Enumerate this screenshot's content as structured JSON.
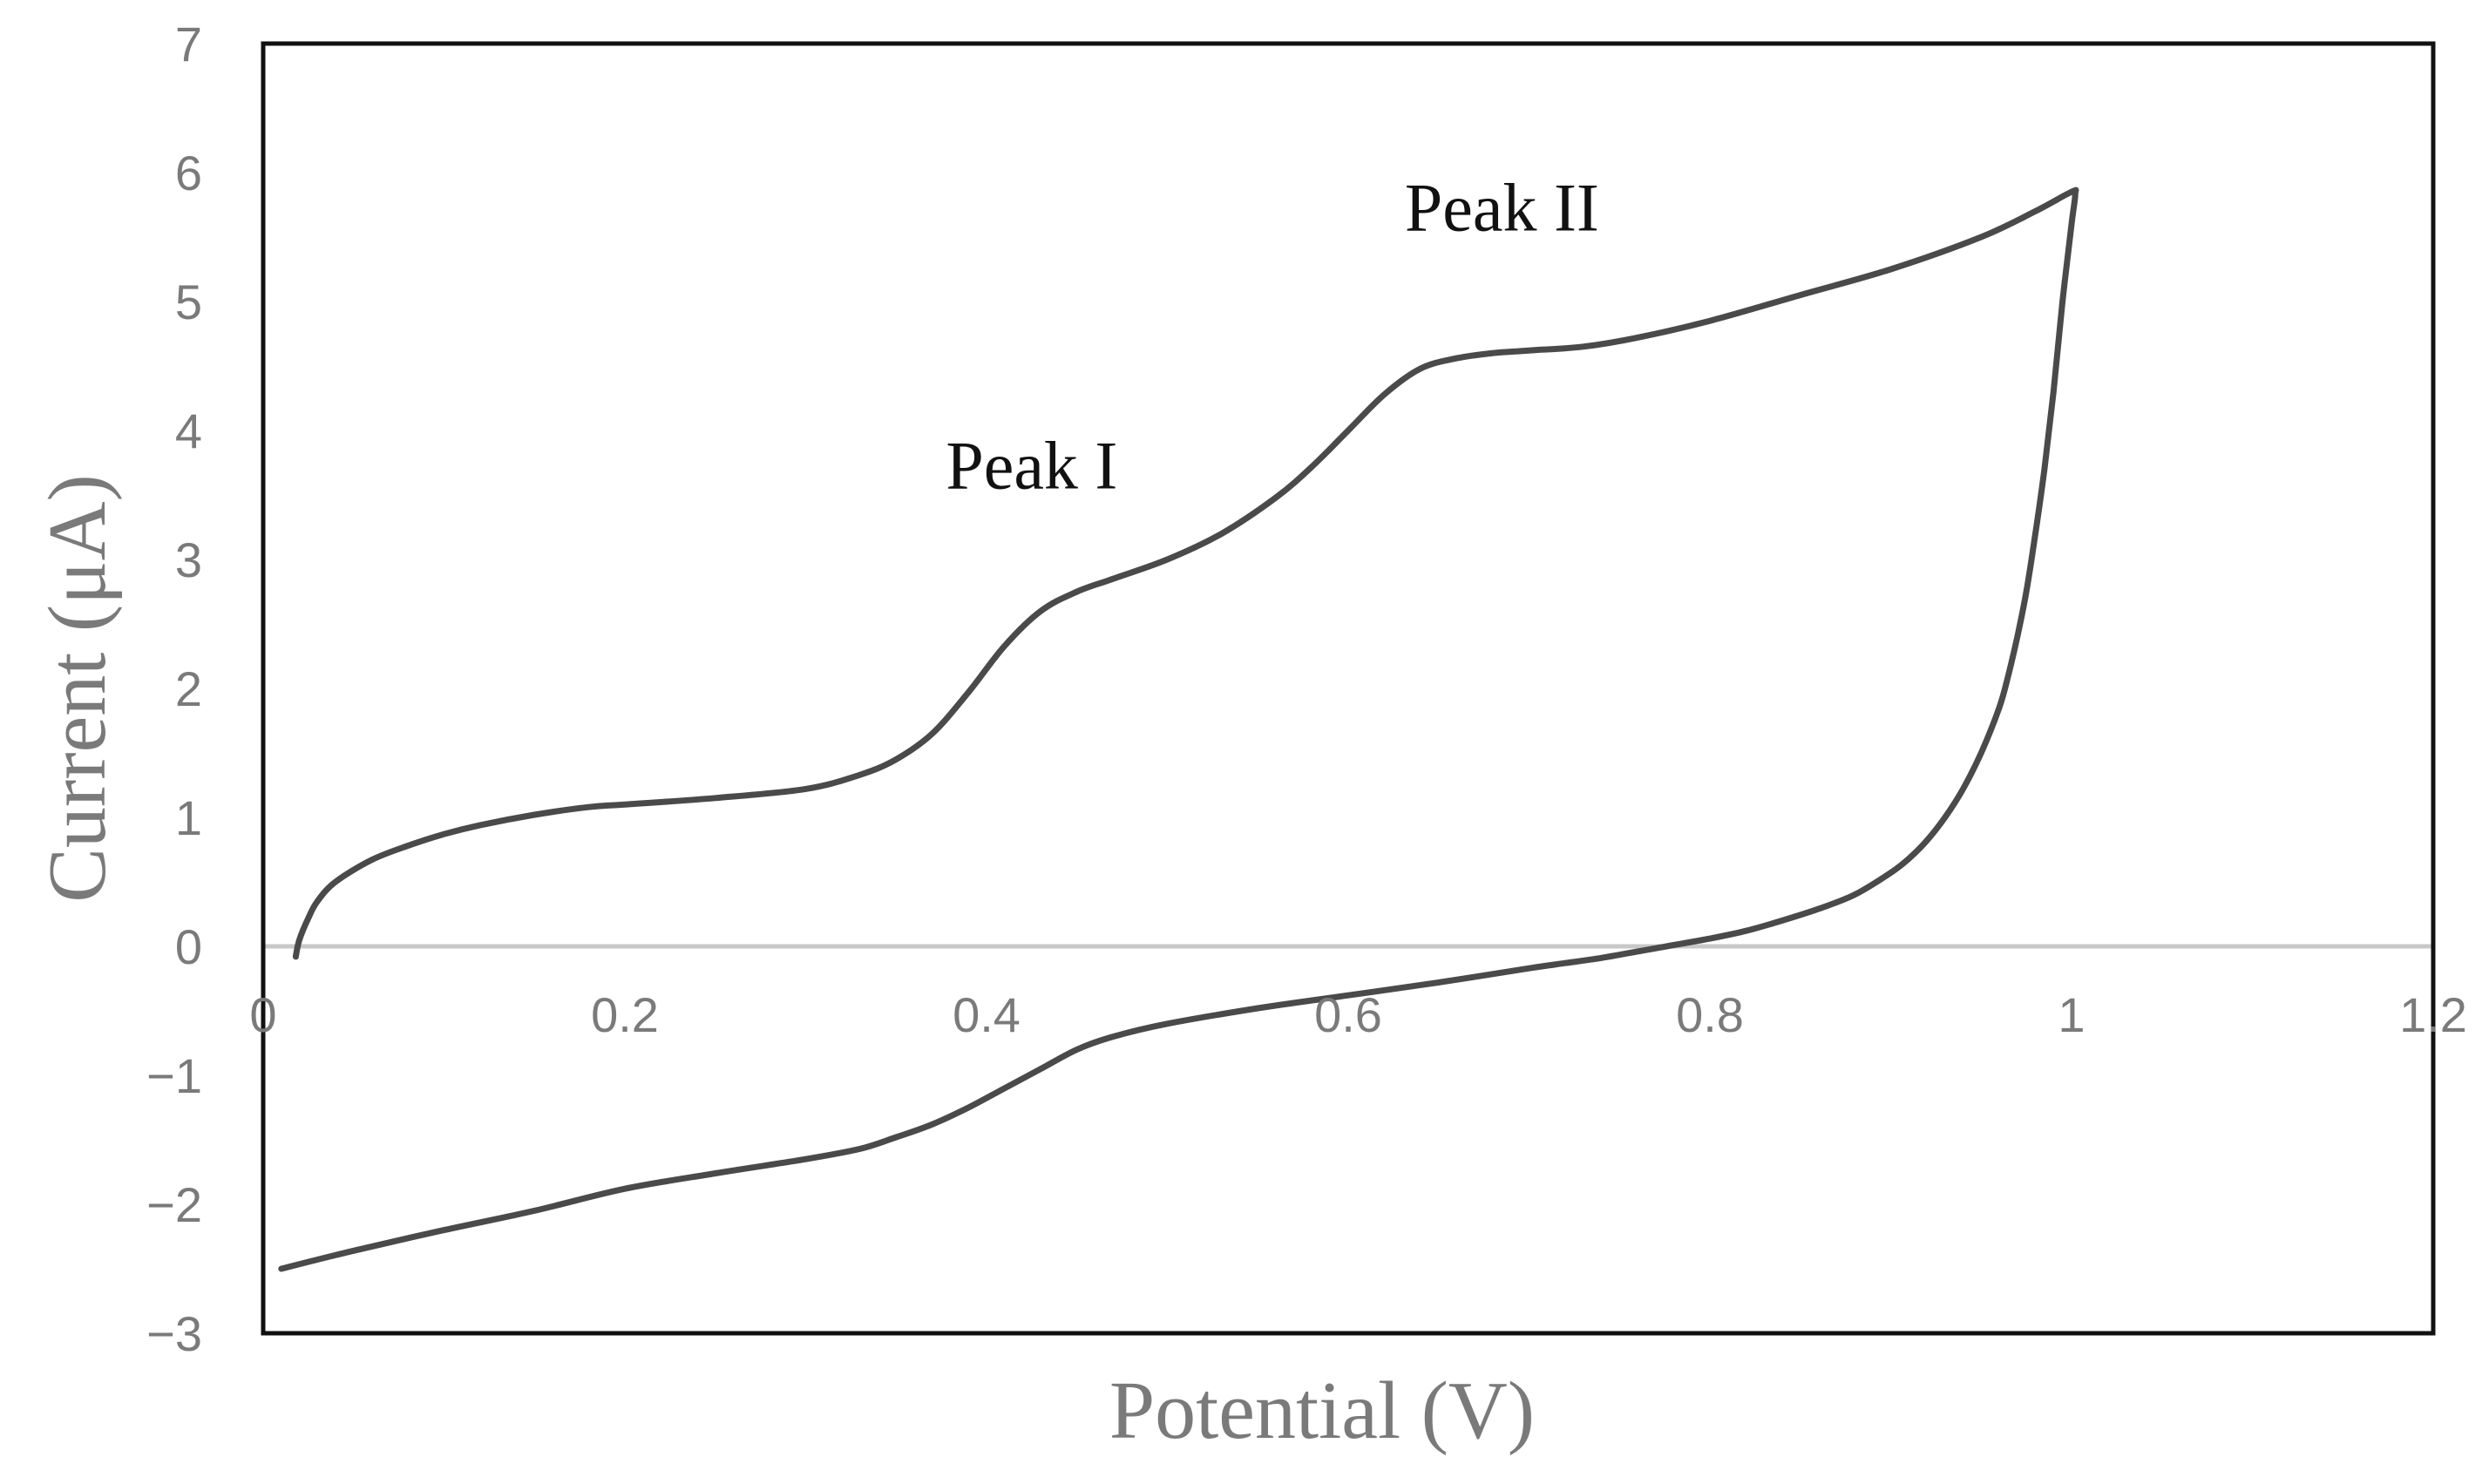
{
  "chart_data": {
    "type": "line",
    "title": "",
    "xlabel": "Potential (V)",
    "ylabel": "Current (μA)",
    "xlim": [
      0,
      1.2
    ],
    "ylim": [
      -3,
      7
    ],
    "xticks": [
      0,
      0.2,
      0.4,
      0.6,
      0.8,
      1,
      1.2
    ],
    "xtick_labels": [
      "0",
      "0.2",
      "0.4",
      "0.6",
      "0.8",
      "1",
      "1.2"
    ],
    "yticks": [
      -3,
      -2,
      -1,
      0,
      1,
      2,
      3,
      4,
      5,
      6,
      7
    ],
    "ytick_labels": [
      "−3",
      "−2",
      "−1",
      "0",
      "1",
      "2",
      "3",
      "4",
      "5",
      "6",
      "7"
    ],
    "grid": false,
    "zero_line": true,
    "legend": "none",
    "series": [
      {
        "color": "#4a4a4a",
        "x": [
          0.018,
          0.02,
          0.025,
          0.03,
          0.04,
          0.06,
          0.08,
          0.1,
          0.12,
          0.15,
          0.18,
          0.2,
          0.25,
          0.3,
          0.33,
          0.35,
          0.37,
          0.39,
          0.41,
          0.43,
          0.45,
          0.47,
          0.5,
          0.53,
          0.56,
          0.58,
          0.6,
          0.62,
          0.64,
          0.66,
          0.68,
          0.7,
          0.73,
          0.76,
          0.8,
          0.85,
          0.9,
          0.95,
          0.98,
          1.0,
          1.002,
          1.0,
          0.995,
          0.99,
          0.985,
          0.98,
          0.975,
          0.97,
          0.965,
          0.96,
          0.95,
          0.94,
          0.93,
          0.92,
          0.91,
          0.9,
          0.88,
          0.86,
          0.84,
          0.82,
          0.8,
          0.78,
          0.76,
          0.74,
          0.72,
          0.7,
          0.65,
          0.6,
          0.55,
          0.5,
          0.47,
          0.45,
          0.43,
          0.41,
          0.39,
          0.37,
          0.35,
          0.33,
          0.3,
          0.25,
          0.2,
          0.15,
          0.1,
          0.05,
          0.01
        ],
        "y": [
          -0.08,
          0.05,
          0.22,
          0.35,
          0.5,
          0.67,
          0.78,
          0.87,
          0.94,
          1.02,
          1.08,
          1.1,
          1.15,
          1.22,
          1.33,
          1.45,
          1.65,
          1.97,
          2.33,
          2.6,
          2.75,
          2.85,
          3.0,
          3.2,
          3.48,
          3.72,
          4.0,
          4.28,
          4.48,
          4.56,
          4.6,
          4.62,
          4.65,
          4.72,
          4.85,
          5.05,
          5.25,
          5.5,
          5.7,
          5.85,
          5.83,
          5.6,
          5.0,
          4.3,
          3.7,
          3.2,
          2.75,
          2.4,
          2.1,
          1.85,
          1.5,
          1.22,
          1.0,
          0.82,
          0.68,
          0.57,
          0.4,
          0.29,
          0.2,
          0.12,
          0.06,
          0.01,
          -0.04,
          -0.09,
          -0.13,
          -0.17,
          -0.28,
          -0.38,
          -0.48,
          -0.6,
          -0.7,
          -0.8,
          -0.95,
          -1.1,
          -1.25,
          -1.38,
          -1.48,
          -1.57,
          -1.65,
          -1.76,
          -1.88,
          -2.05,
          -2.2,
          -2.36,
          -2.5
        ]
      }
    ],
    "annotations": [
      {
        "text": "Peak I",
        "x": 0.425,
        "y": 3.55
      },
      {
        "text": "Peak II",
        "x": 0.685,
        "y": 5.55
      }
    ]
  }
}
